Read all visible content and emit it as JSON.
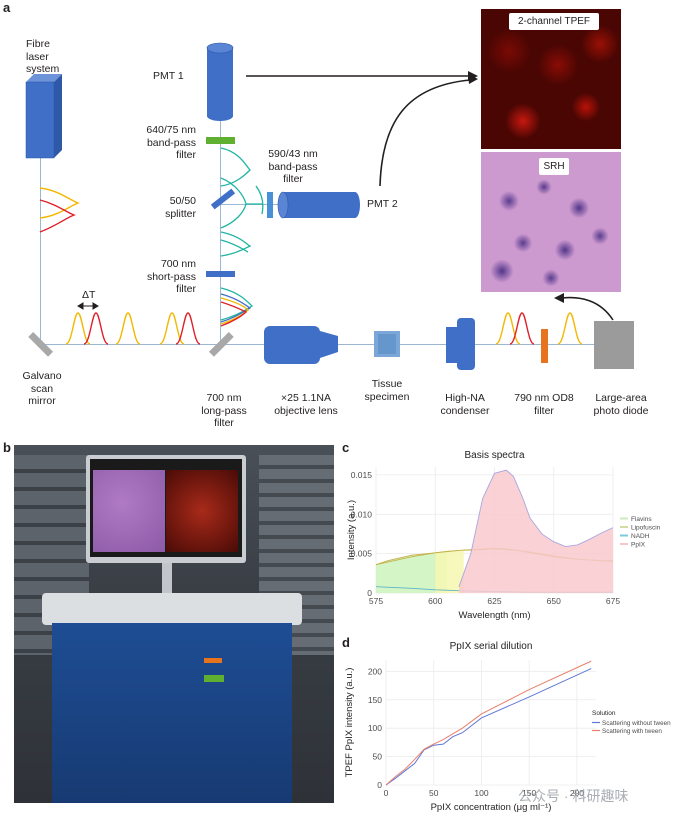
{
  "panels": {
    "a": "a",
    "b": "b",
    "c": "c",
    "d": "d"
  },
  "diagram": {
    "fibre_laser": [
      "Fibre",
      "laser",
      "system"
    ],
    "pmt1": "PMT 1",
    "pmt2": "PMT 2",
    "filter_640": [
      "640/75 nm",
      "band-pass",
      "filter"
    ],
    "filter_590": [
      "590/43 nm",
      "band-pass",
      "filter"
    ],
    "splitter": [
      "50/50",
      "splitter"
    ],
    "filter_700_short": [
      "700 nm",
      "short-pass",
      "filter"
    ],
    "galvano": [
      "Galvano",
      "scan",
      "mirror"
    ],
    "delta_t": "ΔT",
    "filter_700_long": [
      "700 nm",
      "long-pass",
      "filter"
    ],
    "objective": [
      "×25 1.1NA",
      "objective lens"
    ],
    "tissue": [
      "Tissue",
      "specimen"
    ],
    "condenser": [
      "High-NA",
      "condenser"
    ],
    "filter_790": [
      "790 nm OD8",
      "filter"
    ],
    "photodiode": [
      "Large-area",
      "photo diode"
    ],
    "tpef_label": "2-channel TPEF",
    "srh_label": "SRH",
    "colors": {
      "blue_box": "#3f6fc7",
      "green_filter": "#5fb030",
      "orange_filter": "#e8731f",
      "grey_diode": "#9b9b9b",
      "beam": "#9ab7d3",
      "yellow_pulse": "#f2b800",
      "red_pulse": "#e0202a",
      "teal_pulse": "#1fb5a1"
    }
  },
  "chart_data": [
    {
      "type": "area",
      "title": "Basis spectra",
      "xlabel": "Wavelength (nm)",
      "ylabel": "Intensity (a.u.)",
      "xlim": [
        575,
        675
      ],
      "ylim": [
        0,
        0.016
      ],
      "xticks": [
        575,
        600,
        625,
        650,
        675
      ],
      "yticks": [
        0,
        0.005,
        0.01,
        0.015
      ],
      "ytick_labels": [
        "0",
        "0.005",
        "0.010",
        "0.015"
      ],
      "grid": true,
      "legend": "right",
      "series": [
        {
          "name": "Flavins",
          "color": "#cde7c1",
          "x": [
            575,
            580,
            590,
            600,
            605,
            610,
            620,
            625,
            630,
            635,
            640,
            650,
            660,
            670,
            675
          ],
          "values": [
            0.0036,
            0.0041,
            0.0048,
            0.0051,
            0.0053,
            0.0054,
            0.0055,
            0.0056,
            0.0055,
            0.0054,
            0.0051,
            0.0046,
            0.0043,
            0.0041,
            0.004
          ]
        },
        {
          "name": "Lipofuscin",
          "color": "#d9d9a6",
          "x": [
            575,
            590,
            600,
            610,
            620,
            625,
            630,
            640,
            650,
            660,
            670,
            675
          ],
          "values": [
            0.0036,
            0.0046,
            0.0051,
            0.0054,
            0.0056,
            0.0057,
            0.0056,
            0.0052,
            0.0047,
            0.0043,
            0.0041,
            0.0041
          ]
        },
        {
          "name": "NADH",
          "color": "#7ec8e3",
          "x": [
            575,
            590,
            600,
            610,
            620,
            630,
            640,
            650,
            660,
            675
          ],
          "values": [
            0.0008,
            0.0006,
            0.0004,
            0.0003,
            0.0002,
            0.00015,
            0.0001,
            0.0001,
            0.0001,
            0.0001
          ]
        },
        {
          "name": "PpIX",
          "color": "#f7c6c6",
          "x": [
            610,
            615,
            620,
            625,
            630,
            633,
            637,
            640,
            645,
            650,
            655,
            660,
            665,
            670,
            675
          ],
          "values": [
            0.0008,
            0.005,
            0.012,
            0.0152,
            0.0156,
            0.0148,
            0.012,
            0.0095,
            0.0075,
            0.0065,
            0.0059,
            0.0061,
            0.0068,
            0.0076,
            0.0083
          ]
        }
      ]
    },
    {
      "type": "line",
      "title": "PpIX serial dilution",
      "xlabel": "PpIX concentration (μg ml⁻¹)",
      "ylabel": "TPEF PpIX intensity (a.u.)",
      "xlim": [
        0,
        220
      ],
      "ylim": [
        0,
        220
      ],
      "xticks": [
        0,
        50,
        100,
        150,
        200
      ],
      "yticks": [
        0,
        50,
        100,
        150,
        200
      ],
      "grid": true,
      "legend": "right",
      "legend_title": "Solution",
      "series": [
        {
          "name": "Scattering without tween",
          "color": "#6178d6",
          "x": [
            0,
            10,
            20,
            30,
            40,
            50,
            60,
            70,
            80,
            100,
            150,
            215
          ],
          "values": [
            0,
            12,
            25,
            38,
            62,
            70,
            72,
            85,
            92,
            118,
            155,
            205
          ]
        },
        {
          "name": "Scattering with tween",
          "color": "#e8806c",
          "x": [
            0,
            10,
            20,
            30,
            40,
            50,
            60,
            70,
            80,
            100,
            150,
            215
          ],
          "values": [
            0,
            15,
            28,
            45,
            63,
            72,
            80,
            90,
            100,
            125,
            168,
            218
          ]
        }
      ]
    }
  ],
  "watermark": "公众号 · 科研趣味"
}
